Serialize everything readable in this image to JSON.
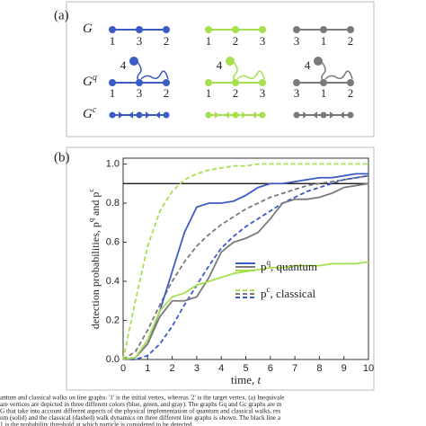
{
  "panel_a": {
    "label": "(a)",
    "rows": [
      {
        "name": "G",
        "sup": null
      },
      {
        "name": "G",
        "sup": "q"
      },
      {
        "name": "G",
        "sup": "c"
      }
    ],
    "extra_vertex": "4",
    "graphs": [
      {
        "color": "#3b5cc4",
        "vertex_labels": [
          "1",
          "3",
          "2"
        ]
      },
      {
        "color": "#a6e04f",
        "vertex_labels": [
          "1",
          "2",
          "3"
        ]
      },
      {
        "color": "#7a7a7a",
        "vertex_labels": [
          "3",
          "1",
          "2"
        ]
      }
    ]
  },
  "chart_data": {
    "type": "line",
    "panel_label": "(b)",
    "xlabel": [
      "time, ",
      "t"
    ],
    "ylabel": [
      "detection probabilities, p",
      "q",
      " and p",
      "c"
    ],
    "x": [
      0,
      0.5,
      1,
      1.5,
      2,
      2.5,
      3,
      3.5,
      4,
      4.5,
      5,
      5.5,
      6,
      6.5,
      7,
      7.5,
      8,
      8.5,
      9,
      9.5,
      10
    ],
    "xlim": [
      0,
      10
    ],
    "xticks": [
      0,
      1,
      2,
      3,
      4,
      5,
      6,
      7,
      8,
      9,
      10
    ],
    "ylim": [
      0,
      1.03
    ],
    "yticks": [
      {
        "value": 0,
        "label": "0.0"
      },
      {
        "value": 0.2,
        "label": "0.2"
      },
      {
        "value": 0.4,
        "label": "0.4"
      },
      {
        "value": 0.6,
        "label": "0.6"
      },
      {
        "value": 0.8,
        "label": "0.8"
      },
      {
        "value": 1,
        "label": "1.0"
      }
    ],
    "threshold": 0.9,
    "threshold_color": "#000000",
    "series": [
      {
        "color": "#a6e04f",
        "style": "dashed",
        "values": [
          0,
          0.3,
          0.58,
          0.76,
          0.86,
          0.92,
          0.95,
          0.97,
          0.98,
          0.99,
          0.99,
          1,
          1,
          1,
          1,
          1,
          1,
          1,
          1,
          1,
          1
        ]
      },
      {
        "color": "#7a7a7a",
        "style": "dashed",
        "values": [
          0,
          0.04,
          0.15,
          0.28,
          0.4,
          0.5,
          0.58,
          0.64,
          0.69,
          0.73,
          0.77,
          0.8,
          0.83,
          0.85,
          0.87,
          0.89,
          0.9,
          0.91,
          0.92,
          0.93,
          0.94
        ]
      },
      {
        "color": "#3b5cc4",
        "style": "dashed",
        "values": [
          0,
          0,
          0.02,
          0.08,
          0.17,
          0.28,
          0.38,
          0.48,
          0.57,
          0.63,
          0.68,
          0.72,
          0.76,
          0.8,
          0.83,
          0.86,
          0.88,
          0.9,
          0.92,
          0.93,
          0.94
        ]
      },
      {
        "color": "#3b5cc4",
        "style": "solid",
        "values": [
          0,
          0.01,
          0.08,
          0.25,
          0.45,
          0.65,
          0.78,
          0.8,
          0.8,
          0.81,
          0.84,
          0.88,
          0.9,
          0.9,
          0.91,
          0.92,
          0.93,
          0.93,
          0.94,
          0.95,
          0.95
        ]
      },
      {
        "color": "#7a7a7a",
        "style": "solid",
        "values": [
          0,
          0.01,
          0.08,
          0.22,
          0.3,
          0.3,
          0.32,
          0.42,
          0.55,
          0.6,
          0.62,
          0.65,
          0.72,
          0.8,
          0.82,
          0.82,
          0.83,
          0.85,
          0.88,
          0.89,
          0.9
        ]
      },
      {
        "color": "#a6e04f",
        "style": "solid",
        "values": [
          0,
          0.01,
          0.1,
          0.25,
          0.32,
          0.34,
          0.38,
          0.4,
          0.42,
          0.44,
          0.45,
          0.46,
          0.47,
          0.47,
          0.48,
          0.48,
          0.48,
          0.49,
          0.49,
          0.49,
          0.5
        ]
      }
    ],
    "legend": [
      {
        "style": "solid",
        "text": [
          "p",
          "q",
          ", quantum"
        ]
      },
      {
        "style": "dashed",
        "text": [
          "p",
          "c",
          ", classical"
        ]
      }
    ]
  },
  "caption": [
    "antum and classical walks on line graphs. '1' is the initial vertex, whereas '2' is the target vertex. (a) Inequivale",
    "are vertices are depicted in three different colors (blue, green, and gray). The graphs Gq and Gc graphs are m",
    "G that take into account different aspects of the physical implementation of quantum and classical walks, res",
    "um (solid) and the classical (dashed) walk dynamics on three different line graphs is shown. The black line a",
    "1 is the probability threshold at which particle is considered to be detected."
  ]
}
